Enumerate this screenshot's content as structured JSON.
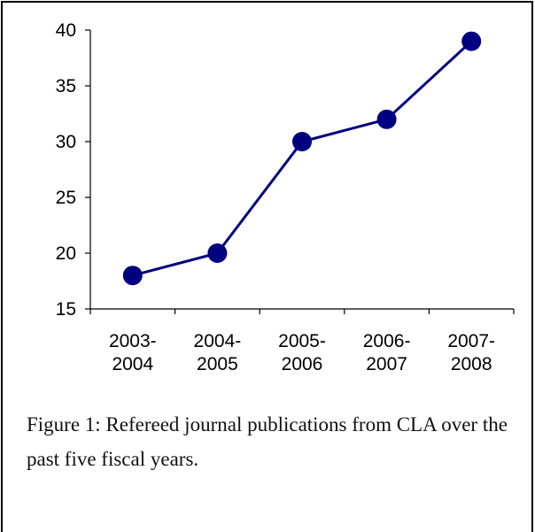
{
  "chart_data": {
    "type": "line",
    "categories": [
      "2003-2004",
      "2004-2005",
      "2005-2006",
      "2006-2007",
      "2007-2008"
    ],
    "category_lines": [
      [
        "2003-",
        "2004"
      ],
      [
        "2004-",
        "2005"
      ],
      [
        "2005-",
        "2006"
      ],
      [
        "2006-",
        "2007"
      ],
      [
        "2007-",
        "2008"
      ]
    ],
    "values": [
      18,
      20,
      30,
      32,
      39
    ],
    "ylim": [
      15,
      40
    ],
    "yticks": [
      15,
      20,
      25,
      30,
      35,
      40
    ],
    "grid": false,
    "line_color": "#000080",
    "marker_color": "#000080"
  },
  "caption": "Figure 1: Refereed journal publications from CLA over the past five fiscal years."
}
